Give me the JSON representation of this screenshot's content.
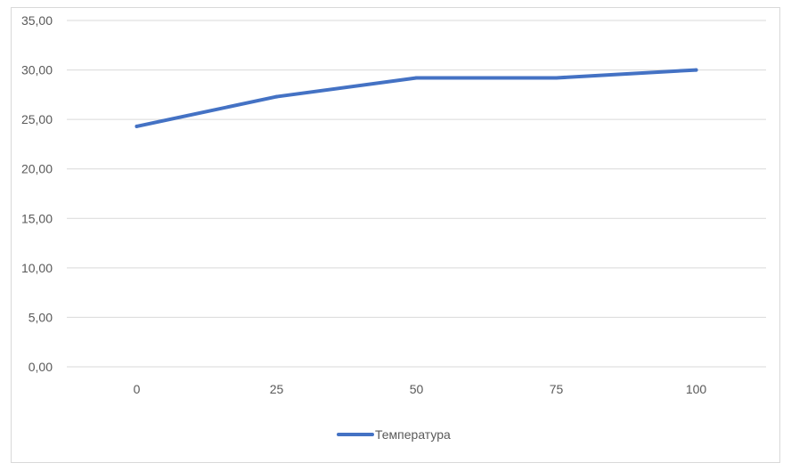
{
  "chart_data": {
    "type": "line",
    "categories": [
      "0",
      "25",
      "50",
      "75",
      "100"
    ],
    "series": [
      {
        "name": "Температура",
        "values": [
          24.3,
          27.3,
          29.2,
          29.2,
          30.0
        ]
      }
    ],
    "y_ticks": [
      "0,00",
      "5,00",
      "10,00",
      "15,00",
      "20,00",
      "25,00",
      "30,00",
      "35,00"
    ],
    "ylim": [
      0,
      35
    ],
    "grid": true,
    "legend_position": "bottom",
    "line_color": "#4472c4",
    "grid_color": "#d9d9d9",
    "text_color": "#595959"
  }
}
